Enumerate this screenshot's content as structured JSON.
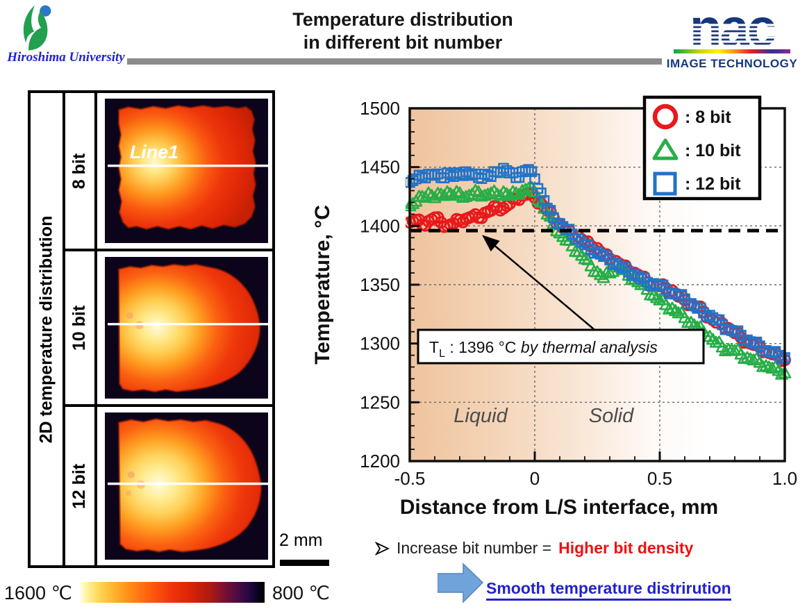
{
  "header": {
    "university": "Hiroshima University",
    "title_line1": "Temperature distribution",
    "title_line2": "in different bit number",
    "nac_name": "nac",
    "nac_sub": "IMAGE TECHNOLOGY"
  },
  "left_panel": {
    "row_header": "2D temperature distribution",
    "rows": [
      {
        "label": "8 bit",
        "line_label": "Line1"
      },
      {
        "label": "10 bit",
        "line_label": ""
      },
      {
        "label": "12 bit",
        "line_label": ""
      }
    ],
    "scale_marker": "2 mm",
    "colorbar": {
      "left_label": "1600 ℃",
      "right_label": "800 ℃"
    }
  },
  "chart_data": {
    "type": "scatter",
    "title": "",
    "xlabel": "Distance from L/S interface, mm",
    "ylabel": "Temperature, °C",
    "xlim": [
      -0.5,
      1.0
    ],
    "ylim": [
      1200,
      1500
    ],
    "xticks": [
      -0.5,
      0,
      0.5,
      1
    ],
    "xtick_labels": [
      "-0.5",
      "0",
      "0.5",
      "1.0"
    ],
    "yticks": [
      1200,
      1250,
      1300,
      1350,
      1400,
      1450,
      1500
    ],
    "ytick_labels": [
      "1200",
      "1250",
      "1300",
      "1350",
      "1400",
      "1450",
      "1500"
    ],
    "grid_x": [
      0,
      0.5
    ],
    "grid_y": [
      1250,
      1300,
      1350,
      1400,
      1450
    ],
    "minor_x_step": 0.1,
    "minor_y_step": 10,
    "legend_position": "top-right",
    "reference_line": {
      "value": 1396,
      "symbol": "T",
      "subscript": "L",
      "value_text": " : 1396 °C  ",
      "note": "by thermal analysis"
    },
    "regions": [
      {
        "label": "Liquid"
      },
      {
        "label": "Solid"
      }
    ],
    "legend": [
      {
        "name": "8 bit",
        "label": ": 8 bit",
        "marker": "circle",
        "color": "#e8191c"
      },
      {
        "name": "10 bit",
        "label": ": 10 bit",
        "marker": "triangle",
        "color": "#27ae48"
      },
      {
        "name": "12 bit",
        "label": ": 12 bit",
        "marker": "square",
        "color": "#2273c8"
      }
    ],
    "series": [
      {
        "name": "8 bit",
        "marker": "circle",
        "color": "#e8191c",
        "points": [
          [
            -0.5,
            1403
          ],
          [
            -0.475,
            1405
          ],
          [
            -0.45,
            1401
          ],
          [
            -0.425,
            1404
          ],
          [
            -0.4,
            1407
          ],
          [
            -0.375,
            1403
          ],
          [
            -0.35,
            1400
          ],
          [
            -0.325,
            1402
          ],
          [
            -0.3,
            1405
          ],
          [
            -0.275,
            1406
          ],
          [
            -0.25,
            1408
          ],
          [
            -0.225,
            1407
          ],
          [
            -0.2,
            1411
          ],
          [
            -0.175,
            1413
          ],
          [
            -0.15,
            1416
          ],
          [
            -0.125,
            1415
          ],
          [
            -0.1,
            1419
          ],
          [
            -0.075,
            1423
          ],
          [
            -0.05,
            1426
          ],
          [
            -0.025,
            1427
          ],
          [
            0,
            1424
          ],
          [
            0.025,
            1419
          ],
          [
            0.05,
            1413
          ],
          [
            0.075,
            1407
          ],
          [
            0.1,
            1401
          ],
          [
            0.125,
            1396
          ],
          [
            0.15,
            1392
          ],
          [
            0.175,
            1391
          ],
          [
            0.2,
            1386
          ],
          [
            0.225,
            1383
          ],
          [
            0.25,
            1381
          ],
          [
            0.275,
            1375
          ],
          [
            0.3,
            1372
          ],
          [
            0.325,
            1370
          ],
          [
            0.35,
            1366
          ],
          [
            0.375,
            1362
          ],
          [
            0.4,
            1360
          ],
          [
            0.425,
            1357
          ],
          [
            0.45,
            1352
          ],
          [
            0.475,
            1350
          ],
          [
            0.5,
            1349
          ],
          [
            0.525,
            1347
          ],
          [
            0.55,
            1345
          ],
          [
            0.575,
            1340
          ],
          [
            0.6,
            1337
          ],
          [
            0.625,
            1333
          ],
          [
            0.65,
            1331
          ],
          [
            0.675,
            1327
          ],
          [
            0.7,
            1322
          ],
          [
            0.725,
            1318
          ],
          [
            0.75,
            1317
          ],
          [
            0.775,
            1313
          ],
          [
            0.8,
            1309
          ],
          [
            0.825,
            1305
          ],
          [
            0.85,
            1301
          ],
          [
            0.875,
            1299
          ],
          [
            0.9,
            1297
          ],
          [
            0.925,
            1293
          ],
          [
            0.95,
            1291
          ],
          [
            0.975,
            1289
          ],
          [
            1,
            1286
          ]
        ]
      },
      {
        "name": "10 bit",
        "marker": "triangle",
        "color": "#27ae48",
        "points": [
          [
            -0.5,
            1417
          ],
          [
            -0.475,
            1421
          ],
          [
            -0.45,
            1425
          ],
          [
            -0.425,
            1428
          ],
          [
            -0.4,
            1424
          ],
          [
            -0.375,
            1427
          ],
          [
            -0.35,
            1429
          ],
          [
            -0.325,
            1426
          ],
          [
            -0.3,
            1428
          ],
          [
            -0.275,
            1425
          ],
          [
            -0.25,
            1427
          ],
          [
            -0.225,
            1429
          ],
          [
            -0.2,
            1426
          ],
          [
            -0.175,
            1428
          ],
          [
            -0.15,
            1427
          ],
          [
            -0.125,
            1429
          ],
          [
            -0.1,
            1426
          ],
          [
            -0.075,
            1428
          ],
          [
            -0.05,
            1430
          ],
          [
            -0.025,
            1432
          ],
          [
            0,
            1429
          ],
          [
            0.025,
            1420
          ],
          [
            0.05,
            1410
          ],
          [
            0.075,
            1402
          ],
          [
            0.1,
            1394
          ],
          [
            0.125,
            1388
          ],
          [
            0.15,
            1383
          ],
          [
            0.175,
            1378
          ],
          [
            0.2,
            1372
          ],
          [
            0.225,
            1366
          ],
          [
            0.25,
            1361
          ],
          [
            0.275,
            1356
          ],
          [
            0.3,
            1360
          ],
          [
            0.325,
            1367
          ],
          [
            0.35,
            1363
          ],
          [
            0.375,
            1358
          ],
          [
            0.4,
            1355
          ],
          [
            0.425,
            1350
          ],
          [
            0.45,
            1346
          ],
          [
            0.475,
            1341
          ],
          [
            0.5,
            1337
          ],
          [
            0.525,
            1333
          ],
          [
            0.55,
            1330
          ],
          [
            0.575,
            1326
          ],
          [
            0.6,
            1322
          ],
          [
            0.625,
            1318
          ],
          [
            0.65,
            1314
          ],
          [
            0.675,
            1310
          ],
          [
            0.7,
            1306
          ],
          [
            0.725,
            1301
          ],
          [
            0.75,
            1297
          ],
          [
            0.775,
            1295
          ],
          [
            0.8,
            1294
          ],
          [
            0.825,
            1291
          ],
          [
            0.85,
            1288
          ],
          [
            0.875,
            1286
          ],
          [
            0.9,
            1284
          ],
          [
            0.925,
            1281
          ],
          [
            0.95,
            1279
          ],
          [
            0.975,
            1277
          ],
          [
            1,
            1275
          ]
        ]
      },
      {
        "name": "12 bit",
        "marker": "square",
        "color": "#2273c8",
        "points": [
          [
            -0.5,
            1437
          ],
          [
            -0.475,
            1440
          ],
          [
            -0.45,
            1442
          ],
          [
            -0.425,
            1444
          ],
          [
            -0.4,
            1443
          ],
          [
            -0.375,
            1441
          ],
          [
            -0.35,
            1445
          ],
          [
            -0.325,
            1442
          ],
          [
            -0.3,
            1444
          ],
          [
            -0.275,
            1446
          ],
          [
            -0.25,
            1443
          ],
          [
            -0.225,
            1441
          ],
          [
            -0.2,
            1444
          ],
          [
            -0.175,
            1442
          ],
          [
            -0.15,
            1446
          ],
          [
            -0.125,
            1449
          ],
          [
            -0.1,
            1445
          ],
          [
            -0.075,
            1441
          ],
          [
            -0.05,
            1446
          ],
          [
            -0.025,
            1448
          ],
          [
            0,
            1440
          ],
          [
            0.025,
            1428
          ],
          [
            0.05,
            1415
          ],
          [
            0.075,
            1407
          ],
          [
            0.1,
            1402
          ],
          [
            0.125,
            1397
          ],
          [
            0.15,
            1393
          ],
          [
            0.175,
            1389
          ],
          [
            0.2,
            1384
          ],
          [
            0.225,
            1380
          ],
          [
            0.25,
            1378
          ],
          [
            0.275,
            1374
          ],
          [
            0.3,
            1371
          ],
          [
            0.325,
            1368
          ],
          [
            0.35,
            1364
          ],
          [
            0.375,
            1361
          ],
          [
            0.4,
            1359
          ],
          [
            0.425,
            1355
          ],
          [
            0.45,
            1352
          ],
          [
            0.475,
            1351
          ],
          [
            0.5,
            1349
          ],
          [
            0.525,
            1346
          ],
          [
            0.55,
            1343
          ],
          [
            0.575,
            1341
          ],
          [
            0.6,
            1338
          ],
          [
            0.625,
            1334
          ],
          [
            0.65,
            1330
          ],
          [
            0.675,
            1326
          ],
          [
            0.7,
            1324
          ],
          [
            0.725,
            1320
          ],
          [
            0.75,
            1316
          ],
          [
            0.775,
            1312
          ],
          [
            0.8,
            1310
          ],
          [
            0.825,
            1307
          ],
          [
            0.85,
            1303
          ],
          [
            0.875,
            1300
          ],
          [
            0.9,
            1298
          ],
          [
            0.925,
            1294
          ],
          [
            0.95,
            1292
          ],
          [
            0.975,
            1290
          ],
          [
            1,
            1288
          ]
        ]
      }
    ]
  },
  "footer": {
    "bullet": "Increase bit number = ",
    "bullet_highlight": "Higher bit density",
    "arrow_note": "Smooth temperature distrirution"
  },
  "colors": {
    "series_8bit": "#e8191c",
    "series_10bit": "#27ae48",
    "series_12bit": "#2273c8",
    "highlight_red": "#ee1111",
    "note_blue": "#2222cc",
    "block_arrow_blue": "#6fa3d9",
    "header_rule_gray": "#8b8b8b",
    "nac_blue": "#16377e",
    "liquid_region_peach": "#efc39e"
  }
}
